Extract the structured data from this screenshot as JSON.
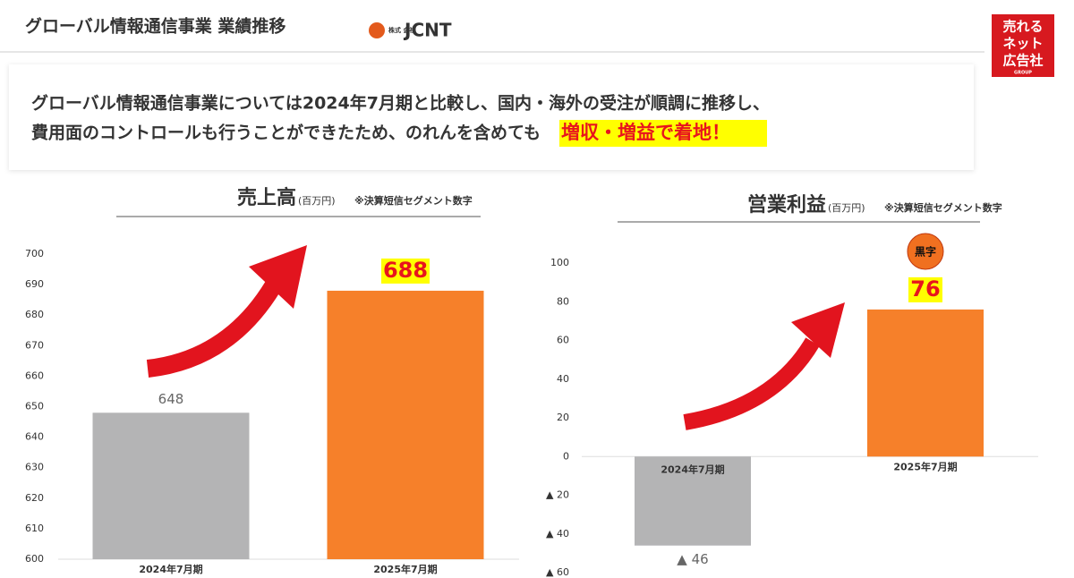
{
  "header": {
    "title": "グローバル情報通信事業 業績推移",
    "logo_small": "株式\n会社",
    "logo": "JCNT",
    "badge": [
      "売れる",
      "ネット",
      "広告社",
      "GROUP"
    ]
  },
  "message": {
    "line1": "グローバル情報通信事業については2024年7月期と比較し、国内・海外の受注が順調に推移し、",
    "line2": "費用面のコントロールも行うことができたため、のれんを含めても",
    "highlight": "増収・増益で着地！"
  },
  "chart_data": [
    {
      "type": "bar",
      "title": "売上高",
      "unit": "(百万円)",
      "note": "※決算短信セグメント数字",
      "categories": [
        "2024年7月期",
        "2025年7月期"
      ],
      "values": [
        648,
        688
      ],
      "value_labels": [
        "648",
        "688"
      ],
      "colors": [
        "#b4b4b5",
        "#f6802a"
      ],
      "ylim": [
        600,
        700
      ],
      "yticks": [
        600,
        610,
        620,
        630,
        640,
        650,
        660,
        670,
        680,
        690,
        700
      ]
    },
    {
      "type": "bar",
      "title": "営業利益",
      "unit": "(百万円)",
      "note": "※決算短信セグメント数字",
      "annotation": "黒字",
      "categories": [
        "2024年7月期",
        "2025年7月期"
      ],
      "values": [
        -46,
        76
      ],
      "value_labels": [
        "▲ 46",
        "76"
      ],
      "colors": [
        "#b4b4b5",
        "#f6802a"
      ],
      "ylim": [
        -60,
        100
      ],
      "yticks": [
        {
          "value": -60,
          "label": "▲ 60"
        },
        {
          "value": -40,
          "label": "▲ 40"
        },
        {
          "value": -20,
          "label": "▲ 20"
        },
        0,
        20,
        40,
        60,
        80,
        100
      ]
    }
  ]
}
